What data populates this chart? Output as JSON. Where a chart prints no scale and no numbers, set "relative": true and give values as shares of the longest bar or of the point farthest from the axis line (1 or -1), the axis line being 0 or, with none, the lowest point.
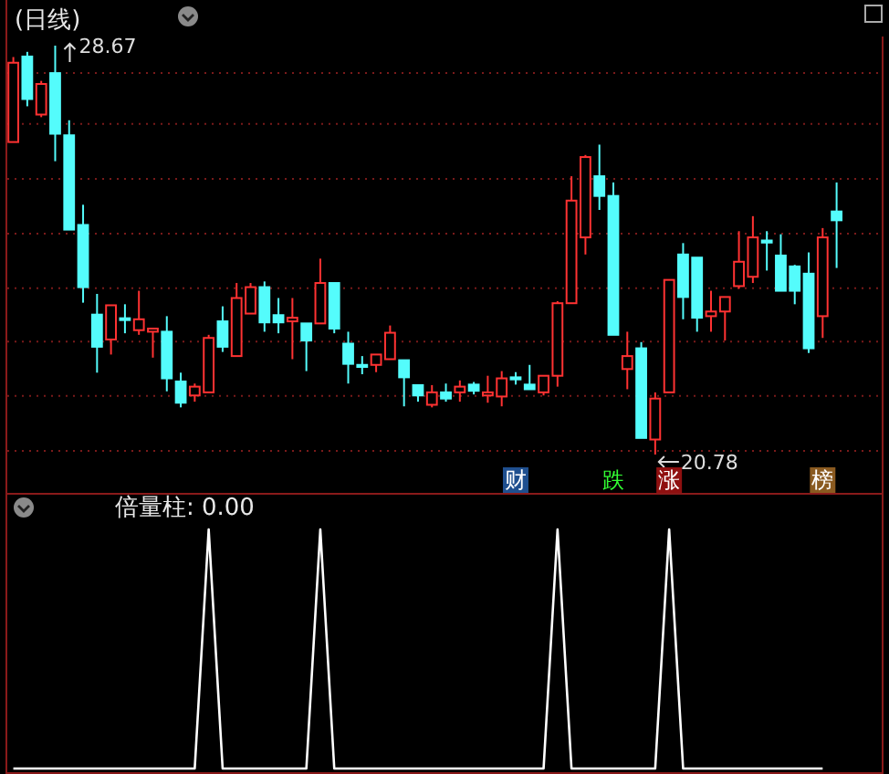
{
  "chart_data": [
    {
      "type": "candlestick",
      "title": "(日线)",
      "grid": "y",
      "yticks": [
        {
          "value": 28.14,
          "label": null
        },
        {
          "value": 27.16,
          "label": null
        },
        {
          "value": 26.1,
          "label": null
        },
        {
          "value": 25.04,
          "label": null
        },
        {
          "value": 23.99,
          "label": null
        },
        {
          "value": 22.96,
          "label": null
        },
        {
          "value": 21.91,
          "label": null
        },
        {
          "value": 20.85,
          "label": null
        }
      ],
      "categories": [
        null,
        null,
        null,
        null,
        null,
        null,
        null,
        null,
        null,
        null,
        null,
        null,
        null,
        null,
        null,
        null,
        null,
        null,
        null,
        null,
        null,
        null,
        null,
        null,
        null,
        null,
        null,
        null,
        null,
        null,
        null,
        null,
        null,
        null,
        null,
        null,
        null,
        null,
        null,
        null,
        null,
        null,
        null,
        null,
        null,
        null,
        null,
        null,
        null,
        null,
        null,
        null,
        null,
        null,
        null,
        null,
        null,
        null,
        null,
        null
      ],
      "ohlc": [
        [
          26.81,
          28.45,
          26.81,
          28.34
        ],
        [
          28.46,
          28.55,
          27.5,
          27.64
        ],
        [
          27.34,
          27.99,
          27.29,
          27.93
        ],
        [
          28.14,
          28.67,
          26.44,
          26.97
        ],
        [
          26.94,
          27.23,
          25.12,
          25.12
        ],
        [
          25.21,
          25.6,
          23.71,
          24.01
        ],
        [
          23.48,
          23.88,
          22.36,
          22.86
        ],
        [
          23.0,
          23.66,
          22.71,
          23.66
        ],
        [
          23.41,
          23.68,
          23.12,
          23.38
        ],
        [
          23.18,
          23.94,
          23.09,
          23.39
        ],
        [
          23.15,
          23.21,
          22.65,
          23.21
        ],
        [
          23.15,
          23.45,
          22.0,
          22.25
        ],
        [
          22.19,
          22.36,
          21.69,
          21.78
        ],
        [
          21.92,
          22.15,
          21.8,
          22.09
        ],
        [
          21.98,
          23.09,
          21.98,
          23.03
        ],
        [
          23.35,
          23.64,
          22.76,
          22.86
        ],
        [
          22.68,
          24.09,
          22.68,
          23.8
        ],
        [
          23.5,
          24.09,
          23.5,
          24.01
        ],
        [
          24.01,
          24.12,
          23.15,
          23.33
        ],
        [
          23.47,
          23.8,
          23.12,
          23.33
        ],
        [
          23.35,
          23.8,
          22.62,
          23.42
        ],
        [
          23.31,
          23.31,
          22.39,
          22.98
        ],
        [
          23.31,
          24.56,
          23.31,
          24.09
        ],
        [
          24.09,
          24.09,
          23.12,
          23.21
        ],
        [
          22.92,
          23.15,
          22.15,
          22.53
        ],
        [
          22.51,
          22.68,
          22.33,
          22.47
        ],
        [
          22.51,
          22.71,
          22.37,
          22.71
        ],
        [
          22.62,
          23.27,
          22.62,
          23.13
        ],
        [
          22.6,
          22.6,
          21.71,
          22.27
        ],
        [
          22.12,
          22.12,
          21.8,
          21.92
        ],
        [
          21.74,
          22.12,
          21.69,
          21.98
        ],
        [
          21.98,
          22.15,
          21.8,
          21.86
        ],
        [
          21.98,
          22.21,
          21.8,
          22.09
        ],
        [
          22.13,
          22.18,
          21.94,
          22.01
        ],
        [
          21.92,
          22.3,
          21.78,
          21.98
        ],
        [
          21.9,
          22.39,
          21.71,
          22.25
        ],
        [
          22.27,
          22.37,
          22.13,
          22.23
        ],
        [
          22.13,
          22.51,
          22.04,
          22.04
        ],
        [
          21.98,
          22.3,
          21.92,
          22.3
        ],
        [
          22.3,
          23.74,
          22.09,
          23.7
        ],
        [
          23.7,
          26.15,
          23.7,
          25.68
        ],
        [
          24.97,
          26.56,
          24.64,
          26.52
        ],
        [
          26.15,
          26.76,
          25.5,
          25.77
        ],
        [
          25.77,
          26.03,
          23.09,
          23.09
        ],
        [
          22.43,
          23.15,
          22.04,
          22.68
        ],
        [
          22.83,
          22.95,
          21.1,
          21.1
        ],
        [
          21.07,
          21.98,
          20.78,
          21.86
        ],
        [
          21.98,
          24.15,
          21.98,
          24.15
        ],
        [
          24.64,
          24.86,
          23.39,
          23.82
        ],
        [
          24.58,
          24.58,
          23.15,
          23.42
        ],
        [
          23.45,
          23.94,
          23.15,
          23.54
        ],
        [
          23.54,
          23.82,
          22.98,
          23.82
        ],
        [
          24.03,
          25.09,
          23.98,
          24.5
        ],
        [
          24.21,
          25.38,
          24.09,
          24.97
        ],
        [
          24.91,
          25.09,
          24.33,
          24.87
        ],
        [
          24.62,
          25.03,
          23.94,
          23.94
        ],
        [
          24.41,
          24.44,
          23.68,
          23.94
        ],
        [
          24.27,
          24.68,
          22.74,
          22.83
        ],
        [
          23.45,
          25.15,
          23.03,
          24.97
        ],
        [
          25.47,
          26.03,
          24.38,
          25.3
        ]
      ],
      "annotations": [
        "财",
        "跌",
        "涨",
        "榜",
        "28.67",
        "20.78"
      ]
    },
    {
      "type": "line",
      "title": "倍量柱: 0.00",
      "relative": true,
      "marker": "none",
      "line_style": "solid",
      "categories": [
        null,
        null,
        null,
        null,
        null,
        null,
        null,
        null,
        null,
        null,
        null,
        null,
        null,
        null,
        null,
        null,
        null,
        null,
        null,
        null,
        null,
        null,
        null,
        null,
        null,
        null,
        null,
        null,
        null,
        null,
        null,
        null,
        null,
        null,
        null,
        null,
        null,
        null,
        null,
        null,
        null,
        null,
        null,
        null,
        null,
        null,
        null,
        null,
        null,
        null,
        null,
        null,
        null,
        null,
        null,
        null,
        null,
        null,
        null,
        null
      ],
      "series": [
        {
          "color": "#ffffff",
          "values": [
            0,
            0,
            0,
            0,
            0,
            0,
            0,
            0,
            0,
            0,
            0,
            0,
            0,
            0,
            1,
            0,
            0,
            0,
            0,
            0,
            0,
            0,
            1,
            0,
            0,
            0,
            0,
            0,
            0,
            0,
            0,
            0,
            0,
            0,
            0,
            0,
            0,
            0,
            0,
            1,
            0,
            0,
            0,
            0,
            0,
            0,
            0,
            1,
            0,
            0,
            0,
            0,
            0,
            0,
            0,
            0,
            0,
            0,
            0,
            null
          ]
        }
      ]
    }
  ]
}
